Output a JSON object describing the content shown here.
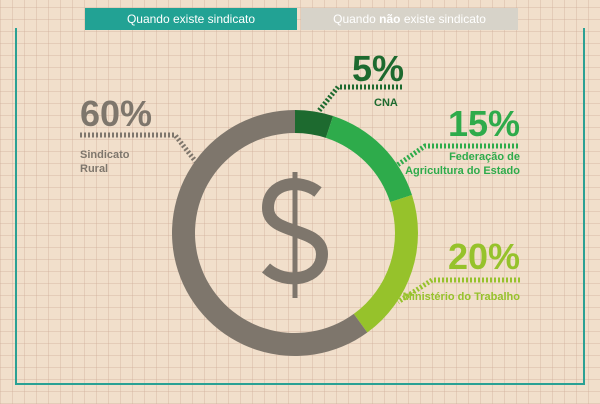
{
  "tabs": [
    "Quando existe sindicato",
    [
      "Quando ",
      "não",
      " existe sindicato"
    ]
  ],
  "chart_data": {
    "type": "pie",
    "donut": true,
    "categories": [
      "CNA",
      "Federação de Agricultura do Estado",
      "Ministério do Trabalho",
      "Sindicato Rural"
    ],
    "values": [
      5,
      15,
      20,
      60
    ],
    "value_labels": [
      "5%",
      "15%",
      "20%",
      "60%"
    ],
    "colors": [
      "#1d6a2f",
      "#2eab4b",
      "#96c22b",
      "#7e766c"
    ]
  }
}
